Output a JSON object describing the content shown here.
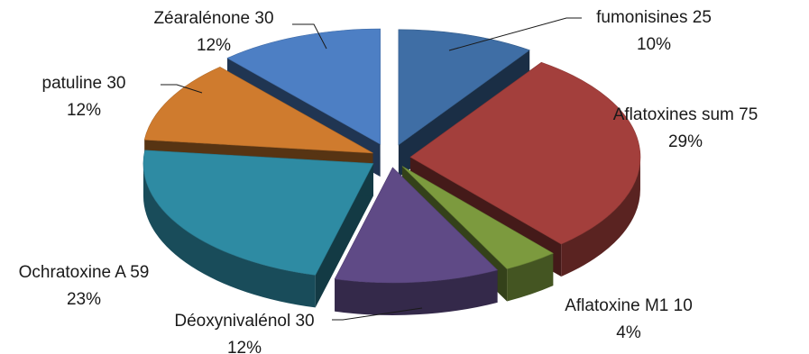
{
  "chart_data": {
    "type": "pie",
    "variant": "3d-exploded",
    "title": "",
    "slices": [
      {
        "name": "fumonisines",
        "value": 25,
        "percent": "10%",
        "color": "#3F6EA5"
      },
      {
        "name": "Aflatoxines sum",
        "value": 75,
        "percent": "29%",
        "color": "#A33F3C"
      },
      {
        "name": "Aflatoxine M1",
        "value": 10,
        "percent": "4%",
        "color": "#7C9A3E"
      },
      {
        "name": "Déoxynivalénol",
        "value": 30,
        "percent": "12%",
        "color": "#5F4A86"
      },
      {
        "name": "Ochratoxine A",
        "value": 59,
        "percent": "23%",
        "color": "#2E8BA3"
      },
      {
        "name": "patuline",
        "value": 30,
        "percent": "12%",
        "color": "#CF7B2E"
      },
      {
        "name": "Zéaralénone",
        "value": 30,
        "percent": "12%",
        "color": "#4D7FC4"
      }
    ]
  }
}
